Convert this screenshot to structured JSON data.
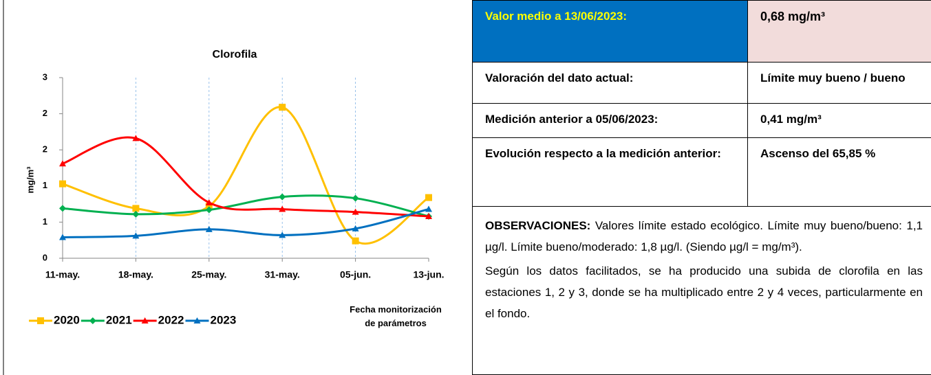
{
  "chart_data": {
    "type": "line",
    "title": "Clorofila",
    "ylabel": "mg/m³",
    "xlabel": "Fecha monitorización de parámetros",
    "categories": [
      "11-may.",
      "18-may.",
      "25-may.",
      "31-may.",
      "05-jun.",
      "13-jun."
    ],
    "ylim": [
      0,
      2.5
    ],
    "yticks": [
      0,
      {
        "value": 0.5,
        "label": "1"
      },
      1,
      {
        "value": 1.5,
        "label": "2"
      },
      2,
      {
        "value": 2.5,
        "label": "3"
      }
    ],
    "smooth": true,
    "series": [
      {
        "name": "2020",
        "color": "#ffc000",
        "marker": "square",
        "values": [
          1.03,
          0.69,
          0.72,
          2.09,
          0.24,
          0.84
        ]
      },
      {
        "name": "2021",
        "color": "#00b050",
        "marker": "diamond",
        "values": [
          0.69,
          0.61,
          0.67,
          0.85,
          0.83,
          0.58
        ]
      },
      {
        "name": "2022",
        "color": "#ff0000",
        "marker": "triangle",
        "values": [
          1.31,
          1.66,
          0.77,
          0.68,
          0.64,
          0.58
        ]
      },
      {
        "name": "2023",
        "color": "#0070c0",
        "marker": "triangle",
        "values": [
          0.29,
          0.31,
          0.4,
          0.32,
          0.41,
          0.68
        ]
      }
    ]
  },
  "table": {
    "rows": [
      [
        "Valor medio a 13/06/2023:",
        "0,68 mg/m³"
      ],
      [
        "Valoración del dato actual:",
        "Límite muy bueno / bueno"
      ],
      [
        "Medición anterior a 05/06/2023:",
        "0,41 mg/m³"
      ],
      [
        "Evolución respecto a la medición anterior:",
        "Ascenso del 65,85 %"
      ]
    ],
    "observations": {
      "label": "OBSERVACIONES:",
      "text": "Valores límite estado ecológico. Límite muy bueno/bueno: 1,1 µg/l. Límite bueno/moderado: 1,8 µg/l. (Siendo µg/l = mg/m³).",
      "paragraph": "Según los datos facilitados, se ha producido una subida de clorofila en las estaciones 1, 2 y 3, donde se ha multiplicado entre 2 y 4 veces, particularmente en el fondo."
    }
  }
}
